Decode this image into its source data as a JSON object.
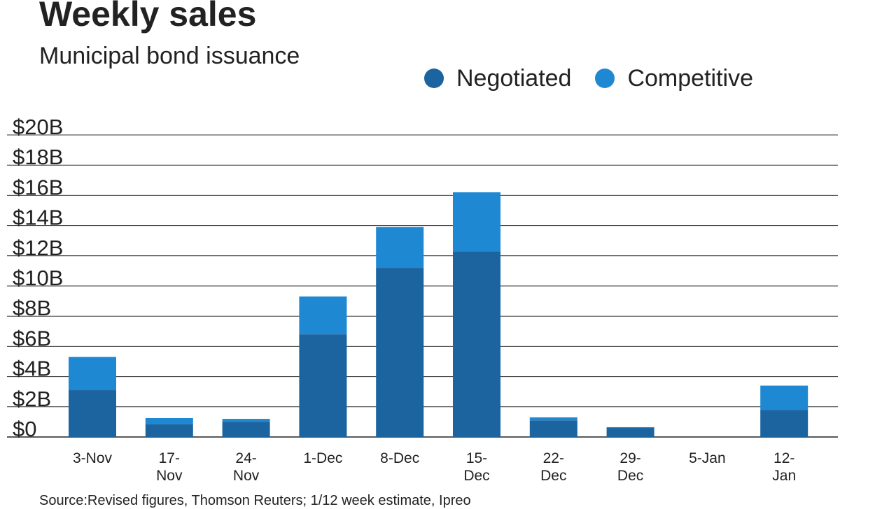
{
  "header": {
    "title": "Weekly sales",
    "subtitle": "Municipal bond issuance"
  },
  "legend": [
    {
      "label": "Negotiated",
      "color": "#1b64a0"
    },
    {
      "label": "Competitive",
      "color": "#1f88d3"
    }
  ],
  "footer": {
    "source": "Source:Revised figures, Thomson Reuters; 1/12 week estimate, Ipreo"
  },
  "chart_data": {
    "type": "bar",
    "stacked": true,
    "title": "Weekly sales",
    "subtitle": "Municipal bond issuance",
    "categories": [
      [
        "3-Nov"
      ],
      [
        "17-",
        "Nov"
      ],
      [
        "24-",
        "Nov"
      ],
      [
        "1-Dec"
      ],
      [
        "8-Dec"
      ],
      [
        "15-",
        "Dec"
      ],
      [
        "22-",
        "Dec"
      ],
      [
        "29-",
        "Dec"
      ],
      [
        "5-Jan"
      ],
      [
        "12-",
        "Jan"
      ]
    ],
    "series": [
      {
        "name": "Negotiated",
        "color": "#1b64a0",
        "values": [
          3.1,
          0.85,
          1.0,
          6.8,
          11.2,
          12.3,
          1.1,
          0.6,
          0,
          1.8
        ]
      },
      {
        "name": "Competitive",
        "color": "#1f88d3",
        "values": [
          2.2,
          0.4,
          0.2,
          2.5,
          2.7,
          3.9,
          0.2,
          0.05,
          0,
          1.6
        ]
      }
    ],
    "yticks": [
      {
        "value": 0,
        "label": "$0"
      },
      {
        "value": 2,
        "label": "$2B"
      },
      {
        "value": 4,
        "label": "$4B"
      },
      {
        "value": 6,
        "label": "$6B"
      },
      {
        "value": 8,
        "label": "$8B"
      },
      {
        "value": 10,
        "label": "$10B"
      },
      {
        "value": 12,
        "label": "$12B"
      },
      {
        "value": 14,
        "label": "$14B"
      },
      {
        "value": 16,
        "label": "$16B"
      },
      {
        "value": 18,
        "label": "$18B"
      },
      {
        "value": 20,
        "label": "$20B"
      }
    ],
    "ylim": [
      0,
      20
    ],
    "grid": true,
    "legend_position": "top-right"
  }
}
